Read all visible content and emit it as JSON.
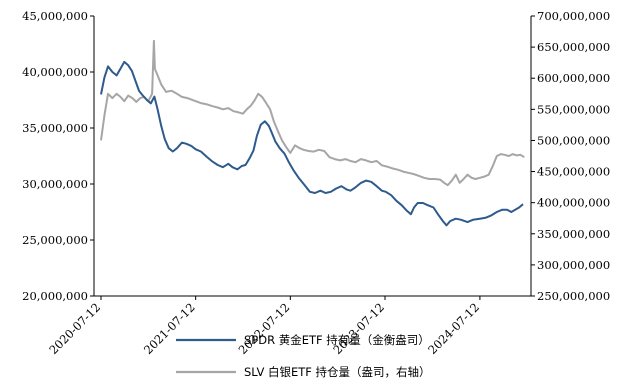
{
  "chart_data": {
    "type": "line",
    "x_range": [
      "2020-06-15",
      "2025-01-25"
    ],
    "x_ticks": [
      "2020-07-12",
      "2021-07-12",
      "2022-07-12",
      "2023-07-12",
      "2024-07-12"
    ],
    "y_left": {
      "ylim": [
        20000000,
        45000000
      ],
      "ticks": [
        20000000,
        25000000,
        30000000,
        35000000,
        40000000,
        45000000
      ],
      "tick_labels": [
        "20,000,000",
        "25,000,000",
        "30,000,000",
        "35,000,000",
        "40,000,000",
        "45,000,000"
      ]
    },
    "y_right": {
      "ylim": [
        250000000,
        700000000
      ],
      "ticks": [
        250000000,
        300000000,
        350000000,
        400000000,
        450000000,
        500000000,
        550000000,
        600000000,
        650000000,
        700000000
      ],
      "tick_labels": [
        "250,000,000",
        "300,000,000",
        "350,000,000",
        "400,000,000",
        "450,000,000",
        "500,000,000",
        "550,000,000",
        "600,000,000",
        "650,000,000",
        "700,000,000"
      ]
    },
    "series": [
      {
        "name": "SPDR 黄金ETF 持有量（金衡盎司）",
        "axis": "left",
        "color": "#2e5a8c",
        "points": [
          [
            "2020-07-12",
            38000000
          ],
          [
            "2020-07-25",
            39500000
          ],
          [
            "2020-08-08",
            40500000
          ],
          [
            "2020-08-25",
            40000000
          ],
          [
            "2020-09-10",
            39700000
          ],
          [
            "2020-09-25",
            40300000
          ],
          [
            "2020-10-10",
            40900000
          ],
          [
            "2020-10-25",
            40600000
          ],
          [
            "2020-11-08",
            40100000
          ],
          [
            "2020-11-22",
            39200000
          ],
          [
            "2020-12-06",
            38300000
          ],
          [
            "2020-12-20",
            37900000
          ],
          [
            "2021-01-05",
            37500000
          ],
          [
            "2021-01-20",
            37200000
          ],
          [
            "2021-02-03",
            37800000
          ],
          [
            "2021-02-15",
            36700000
          ],
          [
            "2021-03-01",
            35200000
          ],
          [
            "2021-03-15",
            34000000
          ],
          [
            "2021-03-30",
            33200000
          ],
          [
            "2021-04-15",
            32900000
          ],
          [
            "2021-05-01",
            33200000
          ],
          [
            "2021-05-20",
            33700000
          ],
          [
            "2021-06-05",
            33600000
          ],
          [
            "2021-06-25",
            33400000
          ],
          [
            "2021-07-12",
            33100000
          ],
          [
            "2021-08-01",
            32900000
          ],
          [
            "2021-08-25",
            32400000
          ],
          [
            "2021-09-15",
            32000000
          ],
          [
            "2021-10-05",
            31700000
          ],
          [
            "2021-10-25",
            31500000
          ],
          [
            "2021-11-15",
            31800000
          ],
          [
            "2021-12-01",
            31500000
          ],
          [
            "2021-12-20",
            31300000
          ],
          [
            "2022-01-05",
            31600000
          ],
          [
            "2022-01-20",
            31700000
          ],
          [
            "2022-02-05",
            32300000
          ],
          [
            "2022-02-20",
            33000000
          ],
          [
            "2022-03-05",
            34300000
          ],
          [
            "2022-03-20",
            35300000
          ],
          [
            "2022-04-05",
            35600000
          ],
          [
            "2022-04-20",
            35200000
          ],
          [
            "2022-05-01",
            34600000
          ],
          [
            "2022-05-15",
            33800000
          ],
          [
            "2022-06-01",
            33200000
          ],
          [
            "2022-06-20",
            32700000
          ],
          [
            "2022-07-05",
            32000000
          ],
          [
            "2022-07-25",
            31200000
          ],
          [
            "2022-08-15",
            30500000
          ],
          [
            "2022-09-05",
            29900000
          ],
          [
            "2022-09-25",
            29300000
          ],
          [
            "2022-10-15",
            29200000
          ],
          [
            "2022-11-05",
            29400000
          ],
          [
            "2022-11-25",
            29200000
          ],
          [
            "2022-12-15",
            29300000
          ],
          [
            "2023-01-05",
            29600000
          ],
          [
            "2023-01-25",
            29800000
          ],
          [
            "2023-02-15",
            29500000
          ],
          [
            "2023-03-01",
            29400000
          ],
          [
            "2023-03-20",
            29700000
          ],
          [
            "2023-04-10",
            30100000
          ],
          [
            "2023-04-30",
            30300000
          ],
          [
            "2023-05-20",
            30200000
          ],
          [
            "2023-06-10",
            29800000
          ],
          [
            "2023-06-30",
            29400000
          ],
          [
            "2023-07-15",
            29300000
          ],
          [
            "2023-08-05",
            29000000
          ],
          [
            "2023-08-25",
            28500000
          ],
          [
            "2023-09-15",
            28100000
          ],
          [
            "2023-10-05",
            27600000
          ],
          [
            "2023-10-20",
            27300000
          ],
          [
            "2023-11-01",
            27900000
          ],
          [
            "2023-11-15",
            28300000
          ],
          [
            "2023-12-05",
            28300000
          ],
          [
            "2023-12-25",
            28100000
          ],
          [
            "2024-01-15",
            27900000
          ],
          [
            "2024-02-01",
            27300000
          ],
          [
            "2024-02-20",
            26700000
          ],
          [
            "2024-03-05",
            26300000
          ],
          [
            "2024-03-20",
            26700000
          ],
          [
            "2024-04-10",
            26900000
          ],
          [
            "2024-05-01",
            26800000
          ],
          [
            "2024-05-25",
            26600000
          ],
          [
            "2024-06-15",
            26800000
          ],
          [
            "2024-07-12",
            26900000
          ],
          [
            "2024-08-05",
            27000000
          ],
          [
            "2024-08-25",
            27200000
          ],
          [
            "2024-09-15",
            27500000
          ],
          [
            "2024-10-05",
            27700000
          ],
          [
            "2024-10-25",
            27700000
          ],
          [
            "2024-11-10",
            27500000
          ],
          [
            "2024-11-25",
            27700000
          ],
          [
            "2024-12-10",
            27900000
          ],
          [
            "2024-12-25",
            28200000
          ]
        ]
      },
      {
        "name": "SLV 白银ETF 持仓量（盎司，右轴）",
        "axis": "right",
        "color": "#a6a6a6",
        "points": [
          [
            "2020-07-12",
            500000000
          ],
          [
            "2020-07-25",
            540000000
          ],
          [
            "2020-08-08",
            575000000
          ],
          [
            "2020-08-25",
            568000000
          ],
          [
            "2020-09-10",
            575000000
          ],
          [
            "2020-09-25",
            570000000
          ],
          [
            "2020-10-10",
            563000000
          ],
          [
            "2020-10-25",
            572000000
          ],
          [
            "2020-11-10",
            568000000
          ],
          [
            "2020-11-25",
            562000000
          ],
          [
            "2020-12-10",
            568000000
          ],
          [
            "2020-12-25",
            570000000
          ],
          [
            "2021-01-10",
            563000000
          ],
          [
            "2021-01-25",
            575000000
          ],
          [
            "2021-02-01",
            660000000
          ],
          [
            "2021-02-05",
            615000000
          ],
          [
            "2021-02-15",
            605000000
          ],
          [
            "2021-03-01",
            590000000
          ],
          [
            "2021-03-20",
            578000000
          ],
          [
            "2021-04-10",
            580000000
          ],
          [
            "2021-05-01",
            575000000
          ],
          [
            "2021-05-20",
            570000000
          ],
          [
            "2021-06-10",
            568000000
          ],
          [
            "2021-07-12",
            563000000
          ],
          [
            "2021-08-01",
            560000000
          ],
          [
            "2021-08-25",
            558000000
          ],
          [
            "2021-09-15",
            555000000
          ],
          [
            "2021-10-05",
            553000000
          ],
          [
            "2021-10-25",
            550000000
          ],
          [
            "2021-11-15",
            552000000
          ],
          [
            "2021-12-05",
            547000000
          ],
          [
            "2021-12-25",
            545000000
          ],
          [
            "2022-01-10",
            543000000
          ],
          [
            "2022-01-25",
            550000000
          ],
          [
            "2022-02-10",
            556000000
          ],
          [
            "2022-02-25",
            565000000
          ],
          [
            "2022-03-10",
            575000000
          ],
          [
            "2022-03-25",
            570000000
          ],
          [
            "2022-04-10",
            560000000
          ],
          [
            "2022-04-25",
            550000000
          ],
          [
            "2022-05-10",
            530000000
          ],
          [
            "2022-05-25",
            515000000
          ],
          [
            "2022-06-10",
            500000000
          ],
          [
            "2022-06-25",
            490000000
          ],
          [
            "2022-07-12",
            480000000
          ],
          [
            "2022-07-30",
            492000000
          ],
          [
            "2022-08-15",
            488000000
          ],
          [
            "2022-09-01",
            485000000
          ],
          [
            "2022-09-20",
            483000000
          ],
          [
            "2022-10-10",
            482000000
          ],
          [
            "2022-10-30",
            485000000
          ],
          [
            "2022-11-20",
            483000000
          ],
          [
            "2022-12-10",
            473000000
          ],
          [
            "2022-12-30",
            470000000
          ],
          [
            "2023-01-20",
            468000000
          ],
          [
            "2023-02-10",
            470000000
          ],
          [
            "2023-03-01",
            467000000
          ],
          [
            "2023-03-20",
            465000000
          ],
          [
            "2023-04-10",
            470000000
          ],
          [
            "2023-04-30",
            468000000
          ],
          [
            "2023-05-20",
            465000000
          ],
          [
            "2023-06-10",
            467000000
          ],
          [
            "2023-06-30",
            460000000
          ],
          [
            "2023-07-20",
            458000000
          ],
          [
            "2023-08-10",
            455000000
          ],
          [
            "2023-08-30",
            453000000
          ],
          [
            "2023-09-20",
            450000000
          ],
          [
            "2023-10-10",
            448000000
          ],
          [
            "2023-10-30",
            446000000
          ],
          [
            "2023-11-20",
            443000000
          ],
          [
            "2023-12-10",
            440000000
          ],
          [
            "2023-12-30",
            438000000
          ],
          [
            "2024-01-20",
            438000000
          ],
          [
            "2024-02-10",
            437000000
          ],
          [
            "2024-02-25",
            432000000
          ],
          [
            "2024-03-10",
            428000000
          ],
          [
            "2024-03-25",
            435000000
          ],
          [
            "2024-04-10",
            445000000
          ],
          [
            "2024-04-25",
            432000000
          ],
          [
            "2024-05-10",
            438000000
          ],
          [
            "2024-05-25",
            445000000
          ],
          [
            "2024-06-10",
            440000000
          ],
          [
            "2024-06-25",
            438000000
          ],
          [
            "2024-07-12",
            440000000
          ],
          [
            "2024-07-30",
            442000000
          ],
          [
            "2024-08-15",
            445000000
          ],
          [
            "2024-09-01",
            460000000
          ],
          [
            "2024-09-15",
            475000000
          ],
          [
            "2024-10-01",
            478000000
          ],
          [
            "2024-10-15",
            477000000
          ],
          [
            "2024-11-01",
            475000000
          ],
          [
            "2024-11-15",
            478000000
          ],
          [
            "2024-12-01",
            476000000
          ],
          [
            "2024-12-15",
            477000000
          ],
          [
            "2024-12-30",
            473000000
          ]
        ]
      }
    ]
  },
  "legend": {
    "gold_label": "SPDR 黄金ETF 持有量（金衡盎司）",
    "silver_label": "SLV 白银ETF 持仓量（盎司，右轴）"
  }
}
